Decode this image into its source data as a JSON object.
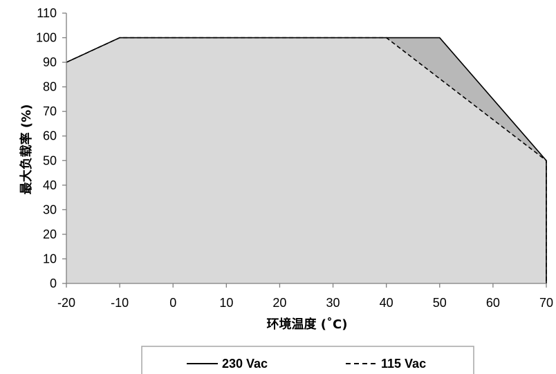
{
  "chart_data": {
    "type": "area",
    "xlabel": "环境温度 (˚C)",
    "ylabel": "最大负载率 (%)",
    "xlim": [
      -20,
      70
    ],
    "ylim": [
      0,
      110
    ],
    "xticks": [
      -20,
      -10,
      0,
      10,
      20,
      30,
      40,
      50,
      60,
      70
    ],
    "yticks": [
      0,
      10,
      20,
      30,
      40,
      50,
      60,
      70,
      80,
      90,
      100,
      110
    ],
    "grid": false,
    "legend_position": "bottom",
    "series": [
      {
        "name": "230 Vac",
        "line_style": "solid",
        "fill_color": "#b8b8b8",
        "line_color": "#000000",
        "points": [
          [
            -20,
            90
          ],
          [
            -10,
            100
          ],
          [
            50,
            100
          ],
          [
            70,
            50
          ],
          [
            70,
            0
          ]
        ]
      },
      {
        "name": "115 Vac",
        "line_style": "dashed",
        "fill_color": "#d9d9d9",
        "line_color": "#000000",
        "points": [
          [
            -20,
            90
          ],
          [
            -10,
            100
          ],
          [
            40,
            100
          ],
          [
            70,
            50
          ],
          [
            70,
            0
          ]
        ]
      }
    ]
  }
}
